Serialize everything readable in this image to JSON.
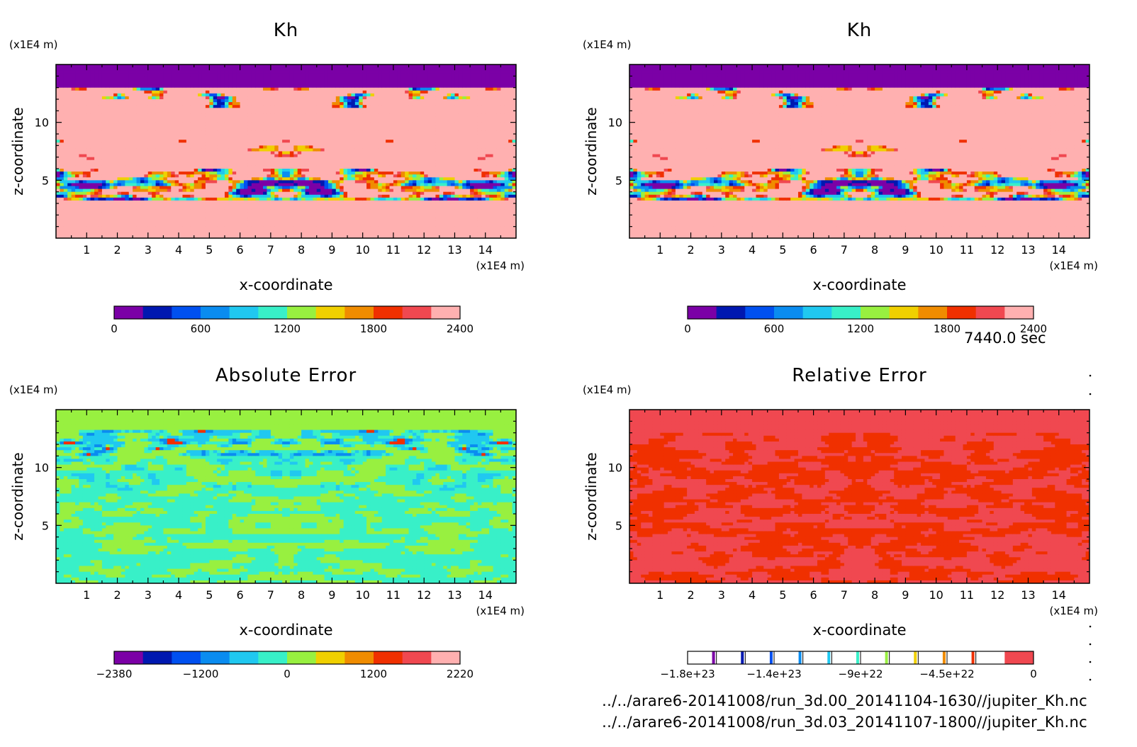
{
  "time": "7440.0 sec",
  "files": [
    "../../arare6-20141008/run_3d.00_20141104-1630//jupiter_Kh.nc",
    "../../arare6-20141008/run_3d.03_20141107-1800//jupiter_Kh.nc"
  ],
  "chart_data": [
    {
      "type": "heatmap",
      "title": "Kh",
      "xlabel": "x-coordinate",
      "ylabel": "z-coordinate",
      "x_unit": "(x1E4 m)",
      "y_unit": "(x1E4 m)",
      "xlim": [
        0,
        15
      ],
      "ylim": [
        0,
        15
      ],
      "xticks": [
        1,
        2,
        3,
        4,
        5,
        6,
        7,
        8,
        9,
        10,
        11,
        12,
        13,
        14
      ],
      "yticks": [
        5,
        10
      ],
      "colorbar": {
        "levels": [
          0,
          200,
          400,
          600,
          800,
          1000,
          1200,
          1400,
          1600,
          1800,
          2000,
          2200,
          2400
        ],
        "tick_labels": [
          "0",
          "600",
          "1200",
          "1800",
          "2400"
        ],
        "colors": [
          "#7b00a6",
          "#0018b0",
          "#0050f0",
          "#0a8cf0",
          "#20c8f0",
          "#38f0c8",
          "#98f040",
          "#f0d000",
          "#f08c00",
          "#f03000",
          "#f04850",
          "#ffb0b0"
        ]
      },
      "field_description": "turbulent diffusion coefficient Kh; purple near top, pink lower region, banded structure between z 3 and 13"
    },
    {
      "type": "heatmap",
      "title": "Kh",
      "xlabel": "x-coordinate",
      "ylabel": "z-coordinate",
      "x_unit": "(x1E4 m)",
      "y_unit": "(x1E4 m)",
      "xlim": [
        0,
        15
      ],
      "ylim": [
        0,
        15
      ],
      "xticks": [
        1,
        2,
        3,
        4,
        5,
        6,
        7,
        8,
        9,
        10,
        11,
        12,
        13,
        14
      ],
      "yticks": [
        5,
        10
      ],
      "colorbar": {
        "levels": [
          0,
          200,
          400,
          600,
          800,
          1000,
          1200,
          1400,
          1600,
          1800,
          2000,
          2200,
          2400
        ],
        "tick_labels": [
          "0",
          "600",
          "1200",
          "1800",
          "2400"
        ],
        "colors": [
          "#7b00a6",
          "#0018b0",
          "#0050f0",
          "#0a8cf0",
          "#20c8f0",
          "#38f0c8",
          "#98f040",
          "#f0d000",
          "#f08c00",
          "#f03000",
          "#f04850",
          "#ffb0b0"
        ]
      }
    },
    {
      "type": "heatmap",
      "title": "Absolute Error",
      "xlabel": "x-coordinate",
      "ylabel": "z-coordinate",
      "x_unit": "(x1E4 m)",
      "y_unit": "(x1E4 m)",
      "xlim": [
        0,
        15
      ],
      "ylim": [
        0,
        15
      ],
      "xticks": [
        1,
        2,
        3,
        4,
        5,
        6,
        7,
        8,
        9,
        10,
        11,
        12,
        13,
        14
      ],
      "yticks": [
        5,
        10
      ],
      "colorbar": {
        "levels": [
          -2380,
          -1980,
          -1580,
          -1200,
          -800,
          -400,
          0,
          400,
          800,
          1200,
          1600,
          2000,
          2220
        ],
        "tick_labels": [
          "-2380",
          "-1200",
          "0",
          "1200",
          "2220"
        ],
        "colors": [
          "#7b00a6",
          "#0018b0",
          "#0050f0",
          "#0a8cf0",
          "#20c8f0",
          "#38f0c8",
          "#98f040",
          "#f0d000",
          "#f08c00",
          "#f03000",
          "#f04850",
          "#ffb0b0"
        ]
      }
    },
    {
      "type": "heatmap",
      "title": "Relative Error",
      "xlabel": "x-coordinate",
      "ylabel": "z-coordinate",
      "x_unit": "(x1E4 m)",
      "y_unit": "(x1E4 m)",
      "xlim": [
        0,
        15
      ],
      "ylim": [
        0,
        15
      ],
      "xticks": [
        1,
        2,
        3,
        4,
        5,
        6,
        7,
        8,
        9,
        10,
        11,
        12,
        13,
        14
      ],
      "yticks": [
        5,
        10
      ],
      "colorbar": {
        "levels": [
          -1.8e+23,
          -1.4e+23,
          -9e+22,
          -4.5e+22,
          0
        ],
        "tick_labels": [
          "-1.8e+23",
          "-1.4e+23",
          "-9e+22",
          "-4.5e+22",
          "0"
        ],
        "colors": [
          "#ffffff",
          "#7b00a6",
          "#0018b0",
          "#0050f0",
          "#0a8cf0",
          "#20c8f0",
          "#38f0c8",
          "#98f040",
          "#f0d000",
          "#f08c00",
          "#f03000",
          "#f04850"
        ]
      }
    }
  ]
}
